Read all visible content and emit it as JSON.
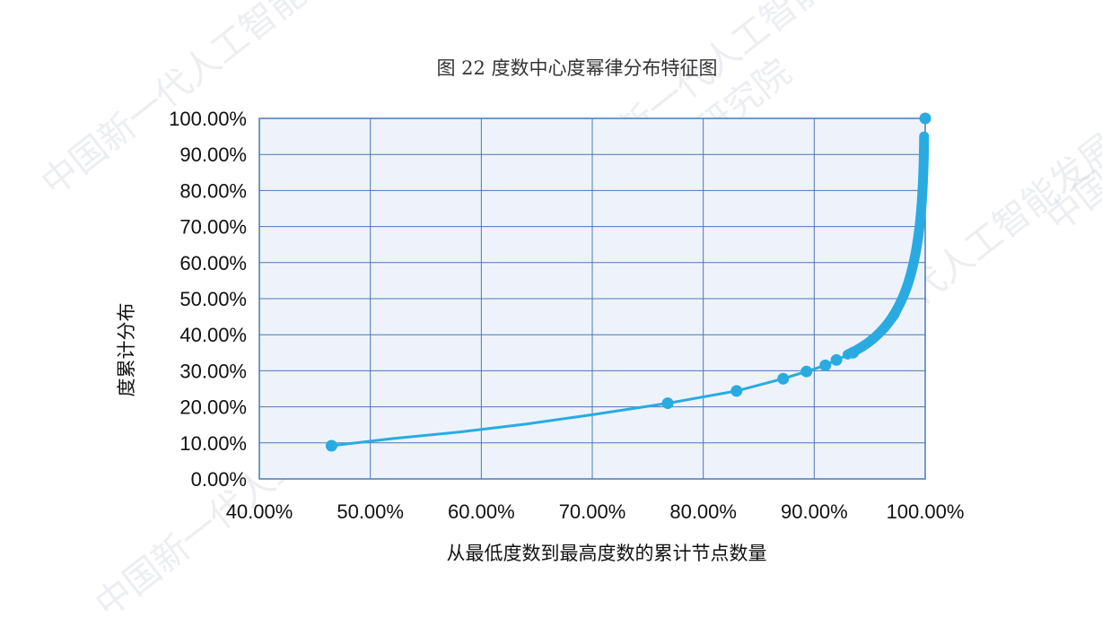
{
  "colors": {
    "series": "#29abe2",
    "plot_bg": "#eef3fb",
    "grid": "#4a78b8",
    "border": "#4a78b8"
  },
  "watermark_text": "中国新一代人工智能发展战略研究院",
  "chart_data": {
    "type": "scatter",
    "title": "图 22 度数中心度幂律分布特征图",
    "xlabel": "从最低度数到最高度数的累计节点数量",
    "ylabel": "度累计分布",
    "xlim": [
      0.4,
      1.0
    ],
    "ylim": [
      0,
      1.0
    ],
    "x_ticks": [
      0.4,
      0.5,
      0.6,
      0.7,
      0.8,
      0.9,
      1.0
    ],
    "y_ticks": [
      0,
      0.1,
      0.2,
      0.3,
      0.4,
      0.5,
      0.6,
      0.7,
      0.8,
      0.9,
      1.0
    ],
    "x_tick_labels": [
      "40.00%",
      "50.00%",
      "60.00%",
      "70.00%",
      "80.00%",
      "90.00%",
      "100.00%"
    ],
    "y_tick_labels": [
      "0.00%",
      "10.00%",
      "20.00%",
      "30.00%",
      "40.00%",
      "50.00%",
      "60.00%",
      "70.00%",
      "80.00%",
      "90.00%",
      "100.00%"
    ],
    "grid": true,
    "legend": "none",
    "series": [
      {
        "line_points": [
          {
            "x": 0.465,
            "y": 0.092
          },
          {
            "x": 0.52,
            "y": 0.112
          },
          {
            "x": 0.58,
            "y": 0.13
          },
          {
            "x": 0.64,
            "y": 0.152
          },
          {
            "x": 0.7,
            "y": 0.178
          },
          {
            "x": 0.768,
            "y": 0.21
          },
          {
            "x": 0.83,
            "y": 0.244
          },
          {
            "x": 0.872,
            "y": 0.278
          },
          {
            "x": 0.893,
            "y": 0.298
          },
          {
            "x": 0.91,
            "y": 0.315
          },
          {
            "x": 0.92,
            "y": 0.33
          },
          {
            "x": 0.935,
            "y": 0.35
          },
          {
            "x": 0.95,
            "y": 0.375
          },
          {
            "x": 0.965,
            "y": 0.41
          },
          {
            "x": 0.975,
            "y": 0.45
          },
          {
            "x": 0.982,
            "y": 0.5
          },
          {
            "x": 0.988,
            "y": 0.56
          },
          {
            "x": 0.992,
            "y": 0.63
          },
          {
            "x": 0.995,
            "y": 0.7
          },
          {
            "x": 0.997,
            "y": 0.78
          },
          {
            "x": 0.998,
            "y": 0.86
          },
          {
            "x": 0.9985,
            "y": 0.94
          }
        ],
        "markers": [
          {
            "x": 0.465,
            "y": 0.092
          },
          {
            "x": 0.768,
            "y": 0.21
          },
          {
            "x": 0.83,
            "y": 0.244
          },
          {
            "x": 0.872,
            "y": 0.278
          },
          {
            "x": 0.893,
            "y": 0.298
          },
          {
            "x": 0.91,
            "y": 0.315
          },
          {
            "x": 0.92,
            "y": 0.33
          },
          {
            "x": 0.935,
            "y": 0.35
          },
          {
            "x": 1.0,
            "y": 1.0
          }
        ]
      }
    ]
  }
}
